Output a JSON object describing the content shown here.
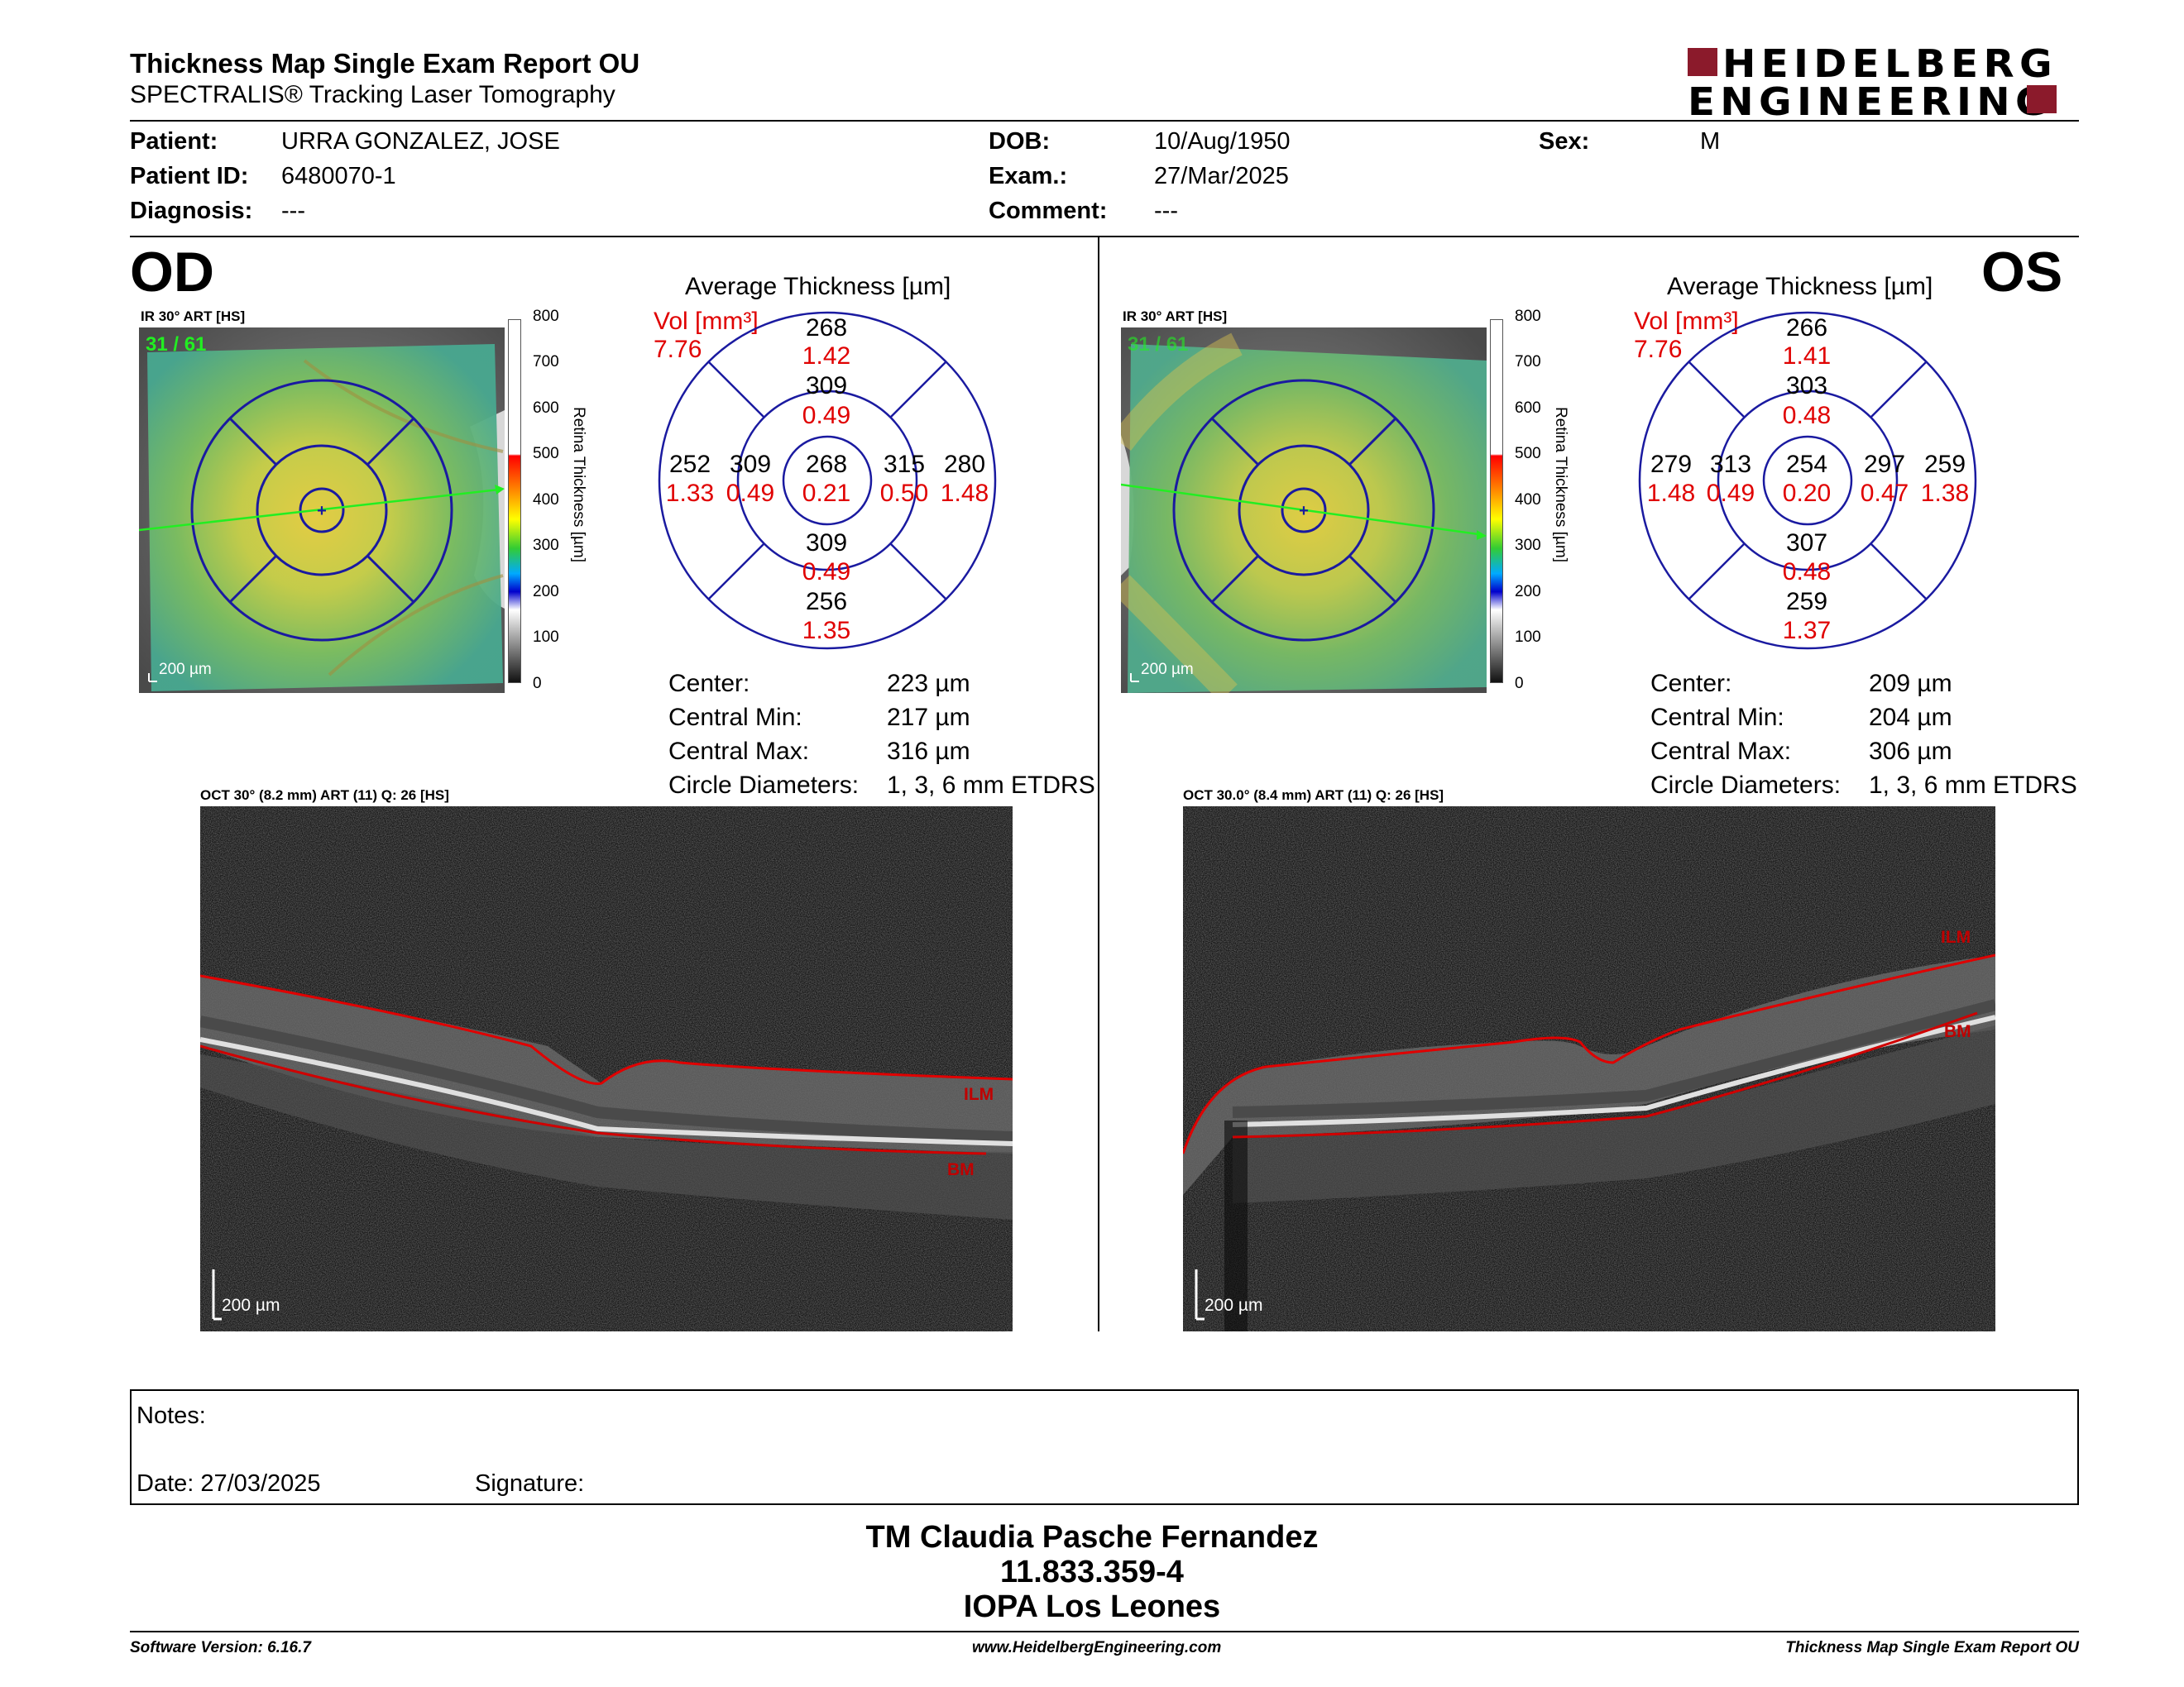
{
  "header": {
    "title": "Thickness Map Single Exam Report OU",
    "subtitle": "SPECTRALIS® Tracking Laser Tomography",
    "logo_line1": "HEIDELBERG",
    "logo_line2": "ENGINEERING"
  },
  "patient": {
    "patient_label": "Patient:",
    "patient_value": "URRA GONZALEZ, JOSE",
    "id_label": "Patient ID:",
    "id_value": "6480070-1",
    "diagnosis_label": "Diagnosis:",
    "diagnosis_value": "---",
    "dob_label": "DOB:",
    "dob_value": "10/Aug/1950",
    "exam_label": "Exam.:",
    "exam_value": "27/Mar/2025",
    "comment_label": "Comment:",
    "comment_value": "---",
    "sex_label": "Sex:",
    "sex_value": "M"
  },
  "colorbar": {
    "title": "Retina Thickness [µm]",
    "ticks": [
      "800",
      "700",
      "600",
      "500",
      "400",
      "300",
      "200",
      "100",
      "0"
    ]
  },
  "od": {
    "eye": "OD",
    "ir_label": "IR 30° ART [HS]",
    "frame_count": "31 / 61",
    "scale": "200 µm",
    "etdrs_title": "Average Thickness [µm]",
    "vol_label": "Vol [mm³]",
    "vol_total": "7.76",
    "sectors": {
      "outer_sup": {
        "t": "268",
        "v": "1.42"
      },
      "inner_sup": {
        "t": "309",
        "v": "0.49"
      },
      "outer_left": {
        "t": "252",
        "v": "1.33"
      },
      "inner_left": {
        "t": "309",
        "v": "0.49"
      },
      "center": {
        "t": "268",
        "v": "0.21"
      },
      "inner_right": {
        "t": "315",
        "v": "0.50"
      },
      "outer_right": {
        "t": "280",
        "v": "1.48"
      },
      "inner_inf": {
        "t": "309",
        "v": "0.49"
      },
      "outer_inf": {
        "t": "256",
        "v": "1.35"
      }
    },
    "stats": {
      "center_label": "Center:",
      "center_value": "223 µm",
      "min_label": "Central Min:",
      "min_value": "217 µm",
      "max_label": "Central Max:",
      "max_value": "316 µm",
      "diam_label": "Circle Diameters:",
      "diam_value": "1, 3, 6 mm ETDRS"
    },
    "oct_label": "OCT 30° (8.2 mm) ART (11) Q: 26 [HS]",
    "oct_scale": "200 µm",
    "ilm": "ILM",
    "bm": "BM"
  },
  "os": {
    "eye": "OS",
    "ir_label": "IR 30° ART [HS]",
    "frame_count": "31 / 61",
    "scale": "200 µm",
    "etdrs_title": "Average Thickness [µm]",
    "vol_label": "Vol [mm³]",
    "vol_total": "7.76",
    "sectors": {
      "outer_sup": {
        "t": "266",
        "v": "1.41"
      },
      "inner_sup": {
        "t": "303",
        "v": "0.48"
      },
      "outer_left": {
        "t": "279",
        "v": "1.48"
      },
      "inner_left": {
        "t": "313",
        "v": "0.49"
      },
      "center": {
        "t": "254",
        "v": "0.20"
      },
      "inner_right": {
        "t": "297",
        "v": "0.47"
      },
      "outer_right": {
        "t": "259",
        "v": "1.38"
      },
      "inner_inf": {
        "t": "307",
        "v": "0.48"
      },
      "outer_inf": {
        "t": "259",
        "v": "1.37"
      }
    },
    "stats": {
      "center_label": "Center:",
      "center_value": "209 µm",
      "min_label": "Central Min:",
      "min_value": "204 µm",
      "max_label": "Central Max:",
      "max_value": "306 µm",
      "diam_label": "Circle Diameters:",
      "diam_value": "1, 3, 6 mm ETDRS"
    },
    "oct_label": "OCT 30.0° (8.4 mm) ART (11) Q: 26 [HS]",
    "oct_scale": "200 µm",
    "ilm": "ILM",
    "bm": "BM"
  },
  "notes": {
    "notes_label": "Notes:",
    "date_label": "Date: 27/03/2025",
    "signature_label": "Signature:"
  },
  "signature": {
    "name": "TM Claudia Pasche Fernandez",
    "id": "11.833.359-4",
    "org": "IOPA Los Leones"
  },
  "footer": {
    "software": "Software Version: 6.16.7",
    "url": "www.HeidelbergEngineering.com",
    "report": "Thickness Map Single Exam Report OU"
  }
}
